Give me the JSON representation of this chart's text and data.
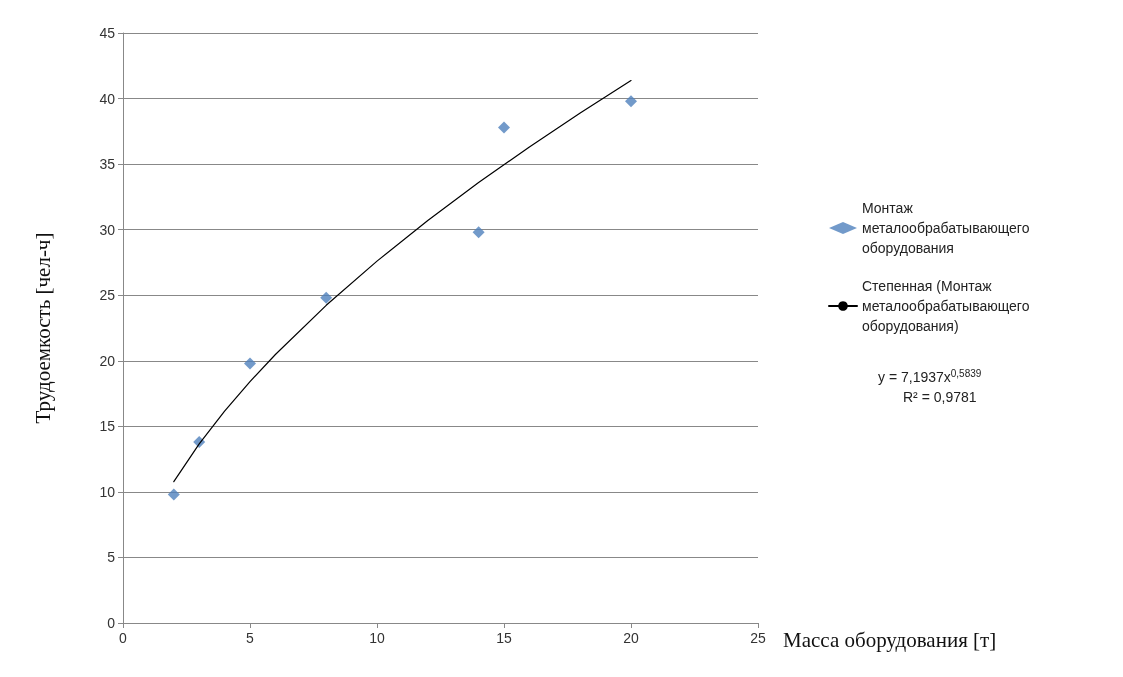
{
  "chart_data": {
    "type": "scatter",
    "xlabel": "Масса оборудования [т]",
    "ylabel": "Трудоемкость [чел-ч]",
    "xlim": [
      0,
      25
    ],
    "xticks": [
      0,
      5,
      10,
      15,
      20,
      25
    ],
    "ylim": [
      0,
      45
    ],
    "yticks": [
      0,
      5,
      10,
      15,
      20,
      25,
      30,
      35,
      40,
      45
    ],
    "grid": "y",
    "legend": "right",
    "marker": "diamond",
    "series": [
      {
        "name": "Монтаж металообрабатывающего оборудования",
        "color": "#4f81bd",
        "x": [
          2,
          3,
          5,
          8,
          14,
          15,
          20
        ],
        "values": [
          9.8,
          13.8,
          19.8,
          24.8,
          29.8,
          37.8,
          39.8
        ]
      },
      {
        "name": "Степенная (Монтаж металообрабатывающего оборудования)",
        "type": "line",
        "color": "#000000",
        "marker": "none",
        "line_style": "solid",
        "x": [
          2,
          3,
          4,
          5,
          6,
          8,
          10,
          12,
          14,
          16,
          18,
          20
        ],
        "values": [
          10.78,
          13.66,
          16.16,
          18.41,
          20.48,
          24.23,
          27.6,
          30.7,
          33.59,
          36.31,
          38.9,
          41.37
        ]
      }
    ],
    "annotations": [
      "y = 7,1937x$^{0,5839}$",
      "R² = 0,9781"
    ]
  }
}
